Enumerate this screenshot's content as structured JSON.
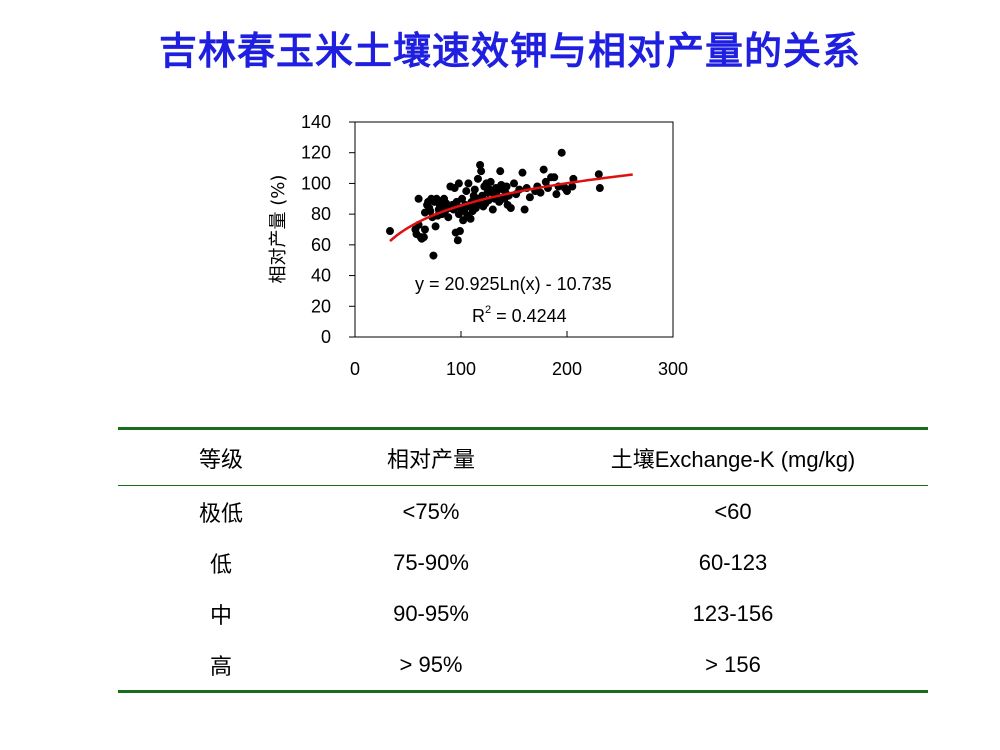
{
  "page": {
    "title": "吉林春玉米土壤速效钾与相对产量的关系"
  },
  "chart_data": {
    "type": "scatter",
    "ylabel": "相对产量 (%)",
    "xlabel": "",
    "xlim": [
      0,
      300
    ],
    "ylim": [
      0,
      140
    ],
    "xticks": [
      "0",
      "100",
      "200",
      "300"
    ],
    "yticks": [
      "0",
      "20",
      "40",
      "60",
      "80",
      "100",
      "120",
      "140"
    ],
    "equation": "y = 20.925Ln(x) - 10.735",
    "r2_prefix": "R",
    "r2_sup": "2",
    "r2_value": " = 0.4244",
    "trendline": {
      "type": "log",
      "a": 20.925,
      "b": -10.735,
      "x_range": [
        33,
        262
      ],
      "color": "#e01010"
    },
    "point_color": "#000000",
    "points": [
      [
        33,
        69
      ],
      [
        57,
        70
      ],
      [
        58,
        67
      ],
      [
        60,
        73
      ],
      [
        60,
        90
      ],
      [
        62,
        65
      ],
      [
        63,
        64
      ],
      [
        65,
        65
      ],
      [
        66,
        70
      ],
      [
        66,
        81
      ],
      [
        68,
        86
      ],
      [
        69,
        88
      ],
      [
        70,
        84
      ],
      [
        71,
        82
      ],
      [
        72,
        90
      ],
      [
        73,
        78
      ],
      [
        74,
        53
      ],
      [
        75,
        88
      ],
      [
        76,
        72
      ],
      [
        77,
        90
      ],
      [
        78,
        79
      ],
      [
        79,
        83
      ],
      [
        80,
        86
      ],
      [
        81,
        88
      ],
      [
        82,
        80
      ],
      [
        83,
        85
      ],
      [
        84,
        90
      ],
      [
        85,
        82
      ],
      [
        86,
        87
      ],
      [
        88,
        78
      ],
      [
        90,
        98
      ],
      [
        90,
        84
      ],
      [
        92,
        86
      ],
      [
        93,
        83
      ],
      [
        94,
        97
      ],
      [
        95,
        68
      ],
      [
        96,
        88
      ],
      [
        97,
        63
      ],
      [
        98,
        80
      ],
      [
        98,
        100
      ],
      [
        99,
        69
      ],
      [
        100,
        84
      ],
      [
        101,
        90
      ],
      [
        102,
        76
      ],
      [
        103,
        82
      ],
      [
        104,
        86
      ],
      [
        105,
        95
      ],
      [
        106,
        79
      ],
      [
        107,
        100
      ],
      [
        108,
        85
      ],
      [
        109,
        77
      ],
      [
        110,
        88
      ],
      [
        111,
        82
      ],
      [
        112,
        92
      ],
      [
        113,
        96
      ],
      [
        114,
        84
      ],
      [
        115,
        90
      ],
      [
        116,
        103
      ],
      [
        117,
        87
      ],
      [
        118,
        112
      ],
      [
        119,
        108
      ],
      [
        120,
        92
      ],
      [
        121,
        85
      ],
      [
        122,
        98
      ],
      [
        123,
        87
      ],
      [
        124,
        100
      ],
      [
        125,
        94
      ],
      [
        126,
        89
      ],
      [
        127,
        96
      ],
      [
        128,
        101
      ],
      [
        130,
        83
      ],
      [
        131,
        93
      ],
      [
        132,
        90
      ],
      [
        133,
        97
      ],
      [
        134,
        95
      ],
      [
        135,
        91
      ],
      [
        136,
        88
      ],
      [
        137,
        108
      ],
      [
        138,
        99
      ],
      [
        140,
        96
      ],
      [
        141,
        90
      ],
      [
        142,
        94
      ],
      [
        143,
        98
      ],
      [
        144,
        86
      ],
      [
        145,
        92
      ],
      [
        147,
        84
      ],
      [
        150,
        100
      ],
      [
        152,
        93
      ],
      [
        155,
        96
      ],
      [
        158,
        107
      ],
      [
        160,
        83
      ],
      [
        162,
        97
      ],
      [
        165,
        91
      ],
      [
        170,
        95
      ],
      [
        172,
        98
      ],
      [
        175,
        94
      ],
      [
        178,
        109
      ],
      [
        180,
        101
      ],
      [
        182,
        97
      ],
      [
        185,
        104
      ],
      [
        188,
        104
      ],
      [
        190,
        93
      ],
      [
        192,
        98
      ],
      [
        195,
        120
      ],
      [
        198,
        97
      ],
      [
        200,
        95
      ],
      [
        205,
        98
      ],
      [
        206,
        103
      ],
      [
        230,
        106
      ],
      [
        231,
        97
      ]
    ]
  },
  "table": {
    "headers": [
      "等级",
      "相对产量",
      "土壤Exchange-K (mg/kg)"
    ],
    "rows": [
      [
        "极低",
        "<75%",
        "<60"
      ],
      [
        "低",
        "75-90%",
        "60-123"
      ],
      [
        "中",
        "90-95%",
        "123-156"
      ],
      [
        "高",
        "> 95%",
        "> 156"
      ]
    ]
  }
}
